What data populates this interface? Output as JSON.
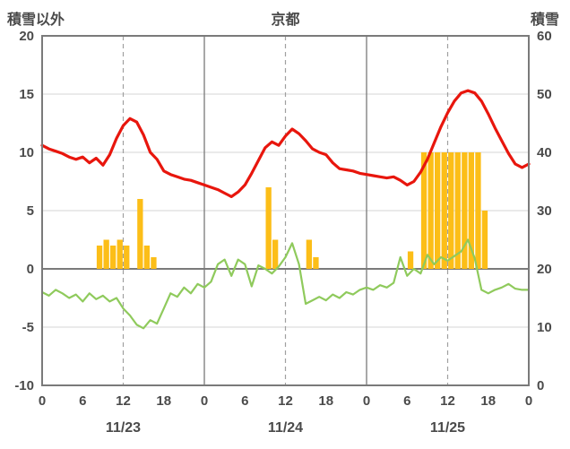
{
  "header": {
    "left_axis_title": "積雪以外",
    "title": "京都",
    "right_axis_title": "積雪"
  },
  "chart_data": {
    "type": "line",
    "title": "京都",
    "left_axis": {
      "label": "積雪以外",
      "min": -10,
      "max": 20,
      "ticks": [
        20,
        15,
        10,
        5,
        0,
        -5,
        -10
      ]
    },
    "right_axis": {
      "label": "積雪",
      "min": 0,
      "max": 60,
      "ticks": [
        60,
        50,
        40,
        30,
        20,
        10,
        0
      ]
    },
    "x_axis": {
      "unit": "hour",
      "min": 0,
      "max": 72,
      "tick_hours": [
        0,
        6,
        12,
        18,
        24,
        30,
        36,
        42,
        48,
        54,
        60,
        66,
        72
      ],
      "tick_labels": [
        "0",
        "6",
        "12",
        "18",
        "0",
        "6",
        "12",
        "18",
        "0",
        "6",
        "12",
        "18",
        "0"
      ],
      "date_labels": [
        {
          "label": "11/23",
          "hour": 12
        },
        {
          "label": "11/24",
          "hour": 36
        },
        {
          "label": "11/25",
          "hour": 60
        }
      ]
    },
    "gridlines": {
      "vertical_solid_hours": [
        24,
        48
      ],
      "vertical_dashed_hours": [
        12,
        36,
        60
      ],
      "horizontal_step": 5
    },
    "series": [
      {
        "name": "green-line",
        "color": "#8fca5c",
        "width": 2.2,
        "axis": "left",
        "x_step_hours": 1,
        "values": [
          -2.0,
          -2.3,
          -1.8,
          -2.1,
          -2.5,
          -2.2,
          -2.8,
          -2.1,
          -2.6,
          -2.3,
          -2.8,
          -2.5,
          -3.4,
          -4.0,
          -4.8,
          -5.1,
          -4.4,
          -4.7,
          -3.4,
          -2.1,
          -2.4,
          -1.6,
          -2.1,
          -1.3,
          -1.6,
          -1.1,
          0.4,
          0.8,
          -0.6,
          0.8,
          0.4,
          -1.5,
          0.3,
          0.0,
          -0.4,
          0.2,
          1.0,
          2.2,
          0.4,
          -3.0,
          -2.7,
          -2.4,
          -2.7,
          -2.2,
          -2.5,
          -2.0,
          -2.2,
          -1.8,
          -1.6,
          -1.8,
          -1.4,
          -1.6,
          -1.2,
          1.0,
          -0.6,
          0.0,
          -0.4,
          1.2,
          0.4,
          1.0,
          0.7,
          1.1,
          1.5,
          2.5,
          0.9,
          -1.8,
          -2.1,
          -1.8,
          -1.6,
          -1.3,
          -1.7,
          -1.8,
          -1.8
        ]
      },
      {
        "name": "red-line",
        "color": "#e8160d",
        "width": 3.2,
        "axis": "left",
        "x_step_hours": 1,
        "values": [
          10.6,
          10.3,
          10.1,
          9.9,
          9.6,
          9.4,
          9.6,
          9.1,
          9.5,
          8.9,
          9.8,
          11.2,
          12.3,
          12.9,
          12.6,
          11.5,
          10.0,
          9.4,
          8.4,
          8.1,
          7.9,
          7.7,
          7.6,
          7.4,
          7.2,
          7.0,
          6.8,
          6.5,
          6.2,
          6.6,
          7.2,
          8.2,
          9.3,
          10.4,
          10.9,
          10.6,
          11.4,
          12.0,
          11.6,
          11.0,
          10.3,
          10.0,
          9.8,
          9.1,
          8.6,
          8.5,
          8.4,
          8.2,
          8.1,
          8.0,
          7.9,
          7.8,
          7.9,
          7.6,
          7.2,
          7.5,
          8.3,
          9.4,
          10.8,
          12.2,
          13.4,
          14.4,
          15.1,
          15.3,
          15.1,
          14.4,
          13.3,
          12.1,
          11.0,
          9.9,
          9.0,
          8.7,
          9.0
        ]
      }
    ],
    "bars": {
      "name": "orange-bars",
      "color": "#FCBE18",
      "axis": "left",
      "points": [
        {
          "hour": 8,
          "value": 2
        },
        {
          "hour": 9,
          "value": 2.5
        },
        {
          "hour": 10,
          "value": 2
        },
        {
          "hour": 11,
          "value": 2.5
        },
        {
          "hour": 12,
          "value": 2
        },
        {
          "hour": 14,
          "value": 6
        },
        {
          "hour": 15,
          "value": 2
        },
        {
          "hour": 16,
          "value": 1
        },
        {
          "hour": 33,
          "value": 7
        },
        {
          "hour": 34,
          "value": 2.5
        },
        {
          "hour": 39,
          "value": 2.5
        },
        {
          "hour": 40,
          "value": 1
        },
        {
          "hour": 54,
          "value": 1.5
        },
        {
          "hour": 56,
          "value": 10
        },
        {
          "hour": 57,
          "value": 10
        },
        {
          "hour": 58,
          "value": 10
        },
        {
          "hour": 59,
          "value": 10
        },
        {
          "hour": 60,
          "value": 10
        },
        {
          "hour": 61,
          "value": 10
        },
        {
          "hour": 62,
          "value": 10
        },
        {
          "hour": 63,
          "value": 10
        },
        {
          "hour": 64,
          "value": 10
        },
        {
          "hour": 65,
          "value": 5
        }
      ]
    },
    "style": {
      "grid_color": "#d6d6d6",
      "axis_color": "#7a7a7a",
      "dashed_color": "#a0a0a0",
      "text_color": "#4a4a4a"
    }
  }
}
